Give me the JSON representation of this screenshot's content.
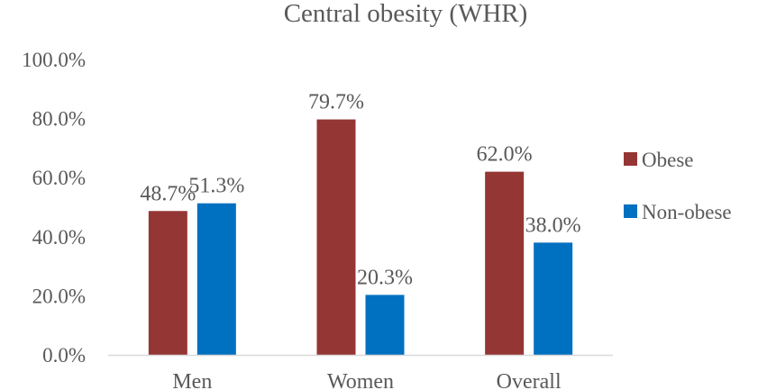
{
  "chart_data": {
    "type": "bar",
    "title": "Central obesity (WHR)",
    "categories": [
      "Men",
      "Women",
      "Overall"
    ],
    "series": [
      {
        "name": "Obese",
        "color": "#943634",
        "values": [
          48.7,
          79.7,
          62.0
        ],
        "labels": [
          "48.7%",
          "79.7%",
          "62.0%"
        ]
      },
      {
        "name": "Non-obese",
        "color": "#0070C0",
        "values": [
          51.3,
          20.3,
          38.0
        ],
        "labels": [
          "51.3%",
          "20.3%",
          "38.0%"
        ]
      }
    ],
    "yticks": [
      "0.0%",
      "20.0%",
      "40.0%",
      "60.0%",
      "80.0%",
      "100.0%"
    ],
    "ylim": [
      0,
      100
    ],
    "xlabel": "",
    "ylabel": "",
    "grid": false,
    "legend_position": "right"
  }
}
